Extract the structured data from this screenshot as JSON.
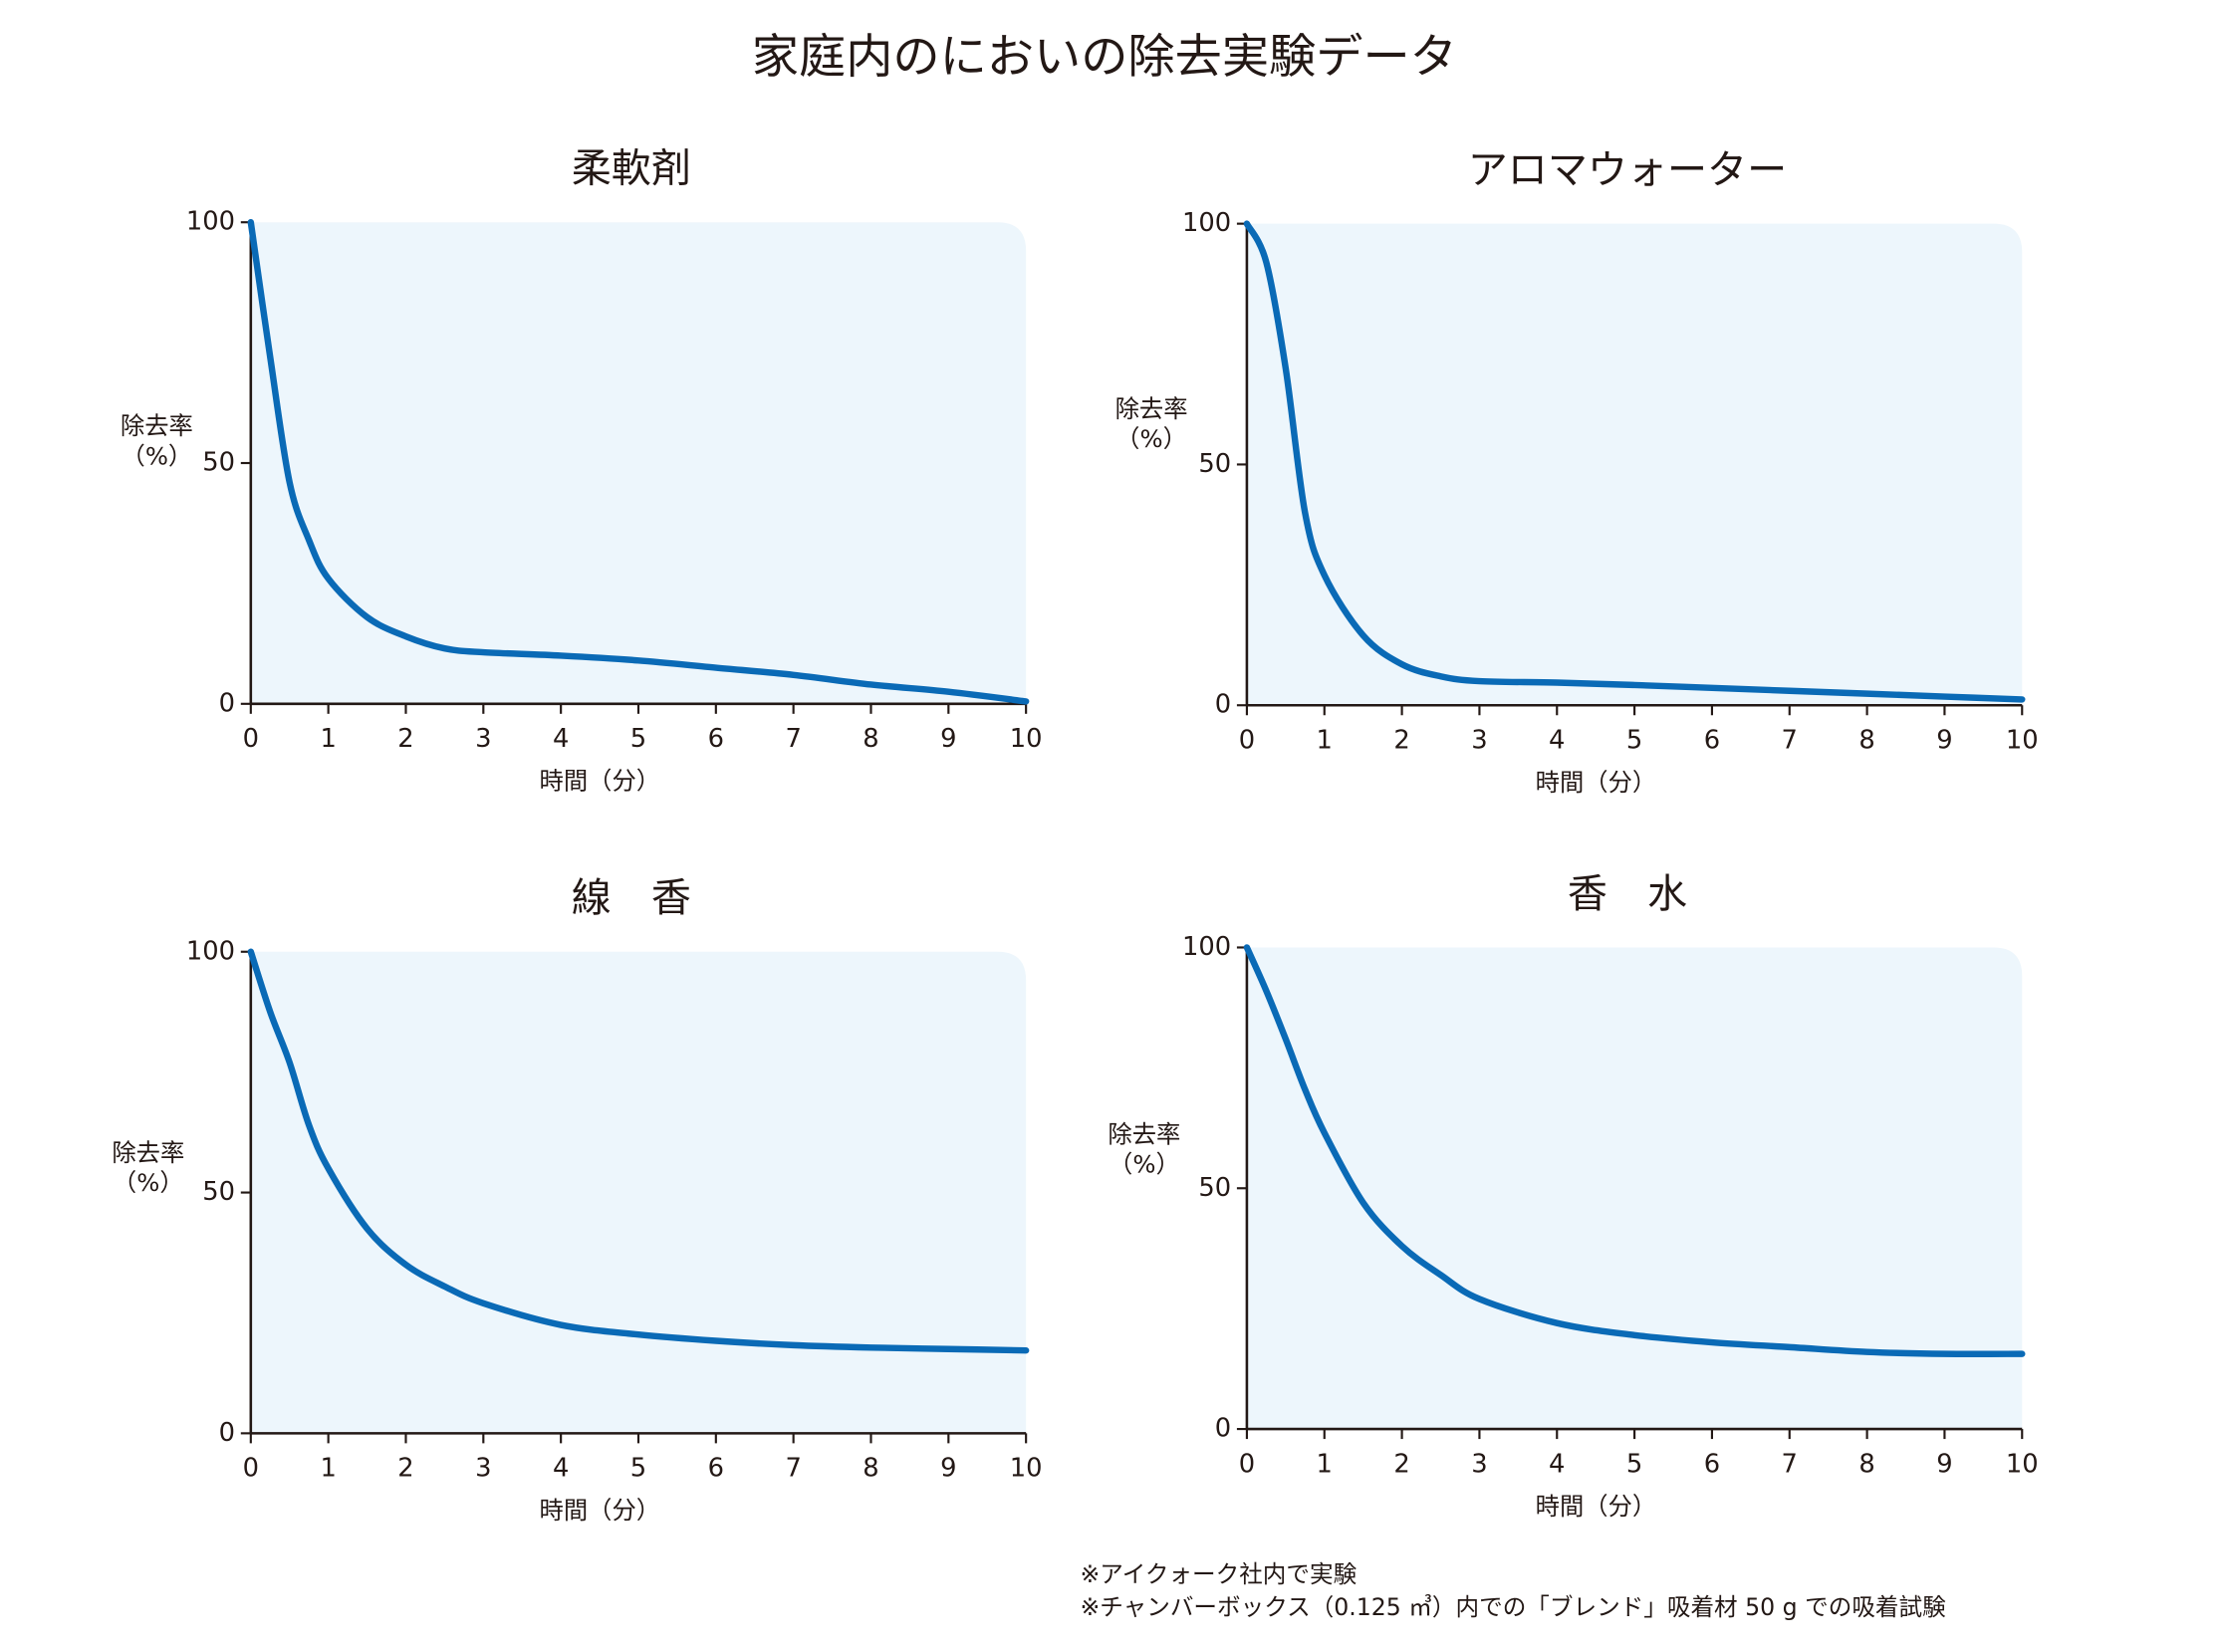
{
  "title": "家庭内のにおいの除去実験データ",
  "notes": [
    "※アイクォーク社内で実験",
    "※チャンバーボックス（0.125 ㎥）内での「ブレンド」吸着材 50 g での吸着試験"
  ],
  "chart_data": [
    {
      "type": "line",
      "title": "柔軟剤",
      "xlabel": "時間（分）",
      "ylabel": [
        "除去率",
        "（%）"
      ],
      "x": [
        0,
        0.25,
        0.5,
        0.75,
        1,
        1.5,
        2,
        2.5,
        3,
        4,
        5,
        6,
        7,
        8,
        9,
        10
      ],
      "series": [
        {
          "color": "#0a6ab6",
          "values": [
            100,
            72,
            46,
            34,
            26,
            18,
            14,
            11.5,
            10.7,
            10,
            9,
            7.5,
            6,
            4,
            2.5,
            0.5
          ]
        }
      ],
      "xlim": [
        0,
        10
      ],
      "xticks": [
        0,
        1,
        2,
        3,
        4,
        5,
        6,
        7,
        8,
        9,
        10
      ],
      "ylim": [
        0,
        100
      ],
      "yticks": [
        0,
        50,
        100
      ]
    },
    {
      "type": "line",
      "title": "アロマウォーター",
      "xlabel": "時間（分）",
      "ylabel": [
        "除去率",
        "（%）"
      ],
      "x": [
        0,
        0.25,
        0.5,
        0.75,
        1,
        1.5,
        2,
        2.5,
        3,
        4,
        5,
        6,
        7,
        8,
        9,
        10
      ],
      "series": [
        {
          "color": "#0a6ab6",
          "values": [
            100,
            92,
            70,
            40,
            27,
            14.5,
            8.5,
            6,
            5,
            4.7,
            4.2,
            3.6,
            3,
            2.4,
            1.8,
            1.2
          ]
        }
      ],
      "xlim": [
        0,
        10
      ],
      "xticks": [
        0,
        1,
        2,
        3,
        4,
        5,
        6,
        7,
        8,
        9,
        10
      ],
      "ylim": [
        0,
        100
      ],
      "yticks": [
        0,
        50,
        100
      ]
    },
    {
      "type": "line",
      "title": "線　香",
      "xlabel": "時間（分）",
      "ylabel": [
        "除去率",
        "（%）"
      ],
      "x": [
        0,
        0.25,
        0.5,
        0.75,
        1,
        1.5,
        2,
        2.5,
        3,
        4,
        5,
        6,
        7,
        8,
        9,
        10
      ],
      "series": [
        {
          "color": "#0a6ab6",
          "values": [
            100,
            87.5,
            77,
            64,
            55,
            42.5,
            35,
            30.5,
            27,
            22.5,
            20.5,
            19.2,
            18.3,
            17.8,
            17.5,
            17.2
          ]
        }
      ],
      "xlim": [
        0,
        10
      ],
      "xticks": [
        0,
        1,
        2,
        3,
        4,
        5,
        6,
        7,
        8,
        9,
        10
      ],
      "ylim": [
        0,
        100
      ],
      "yticks": [
        0,
        50,
        100
      ]
    },
    {
      "type": "line",
      "title": "香　水",
      "xlabel": "時間（分）",
      "ylabel": [
        "除去率",
        "（%）"
      ],
      "x": [
        0,
        0.25,
        0.5,
        0.75,
        1,
        1.5,
        2,
        2.5,
        3,
        4,
        5,
        6,
        7,
        8,
        9,
        10
      ],
      "series": [
        {
          "color": "#0a6ab6",
          "values": [
            100,
            91,
            81,
            70.5,
            61.5,
            47,
            38,
            32,
            27,
            22,
            19.5,
            18,
            17,
            16,
            15.6,
            15.6
          ]
        }
      ],
      "xlim": [
        0,
        10
      ],
      "xticks": [
        0,
        1,
        2,
        3,
        4,
        5,
        6,
        7,
        8,
        9,
        10
      ],
      "ylim": [
        0,
        100
      ],
      "yticks": [
        0,
        50,
        100
      ]
    }
  ]
}
